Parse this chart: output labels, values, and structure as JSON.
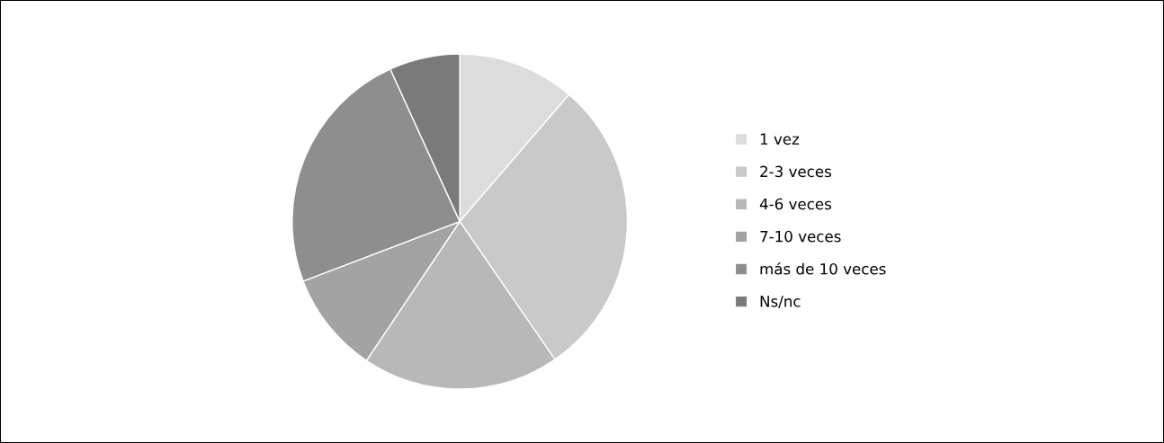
{
  "chart_data": {
    "type": "pie",
    "categories": [
      "1 vez",
      "2-3 veces",
      "4-6 veces",
      "7-10 veces",
      "más de 10 veces",
      "Ns/nc"
    ],
    "values": [
      11.3,
      29.1,
      19.0,
      9.8,
      24.0,
      6.8
    ],
    "colors": [
      "#dcdcdc",
      "#c9c9c9",
      "#b8b8b8",
      "#a3a3a3",
      "#8e8e8e",
      "#7a7a7a"
    ],
    "legend": "right"
  }
}
